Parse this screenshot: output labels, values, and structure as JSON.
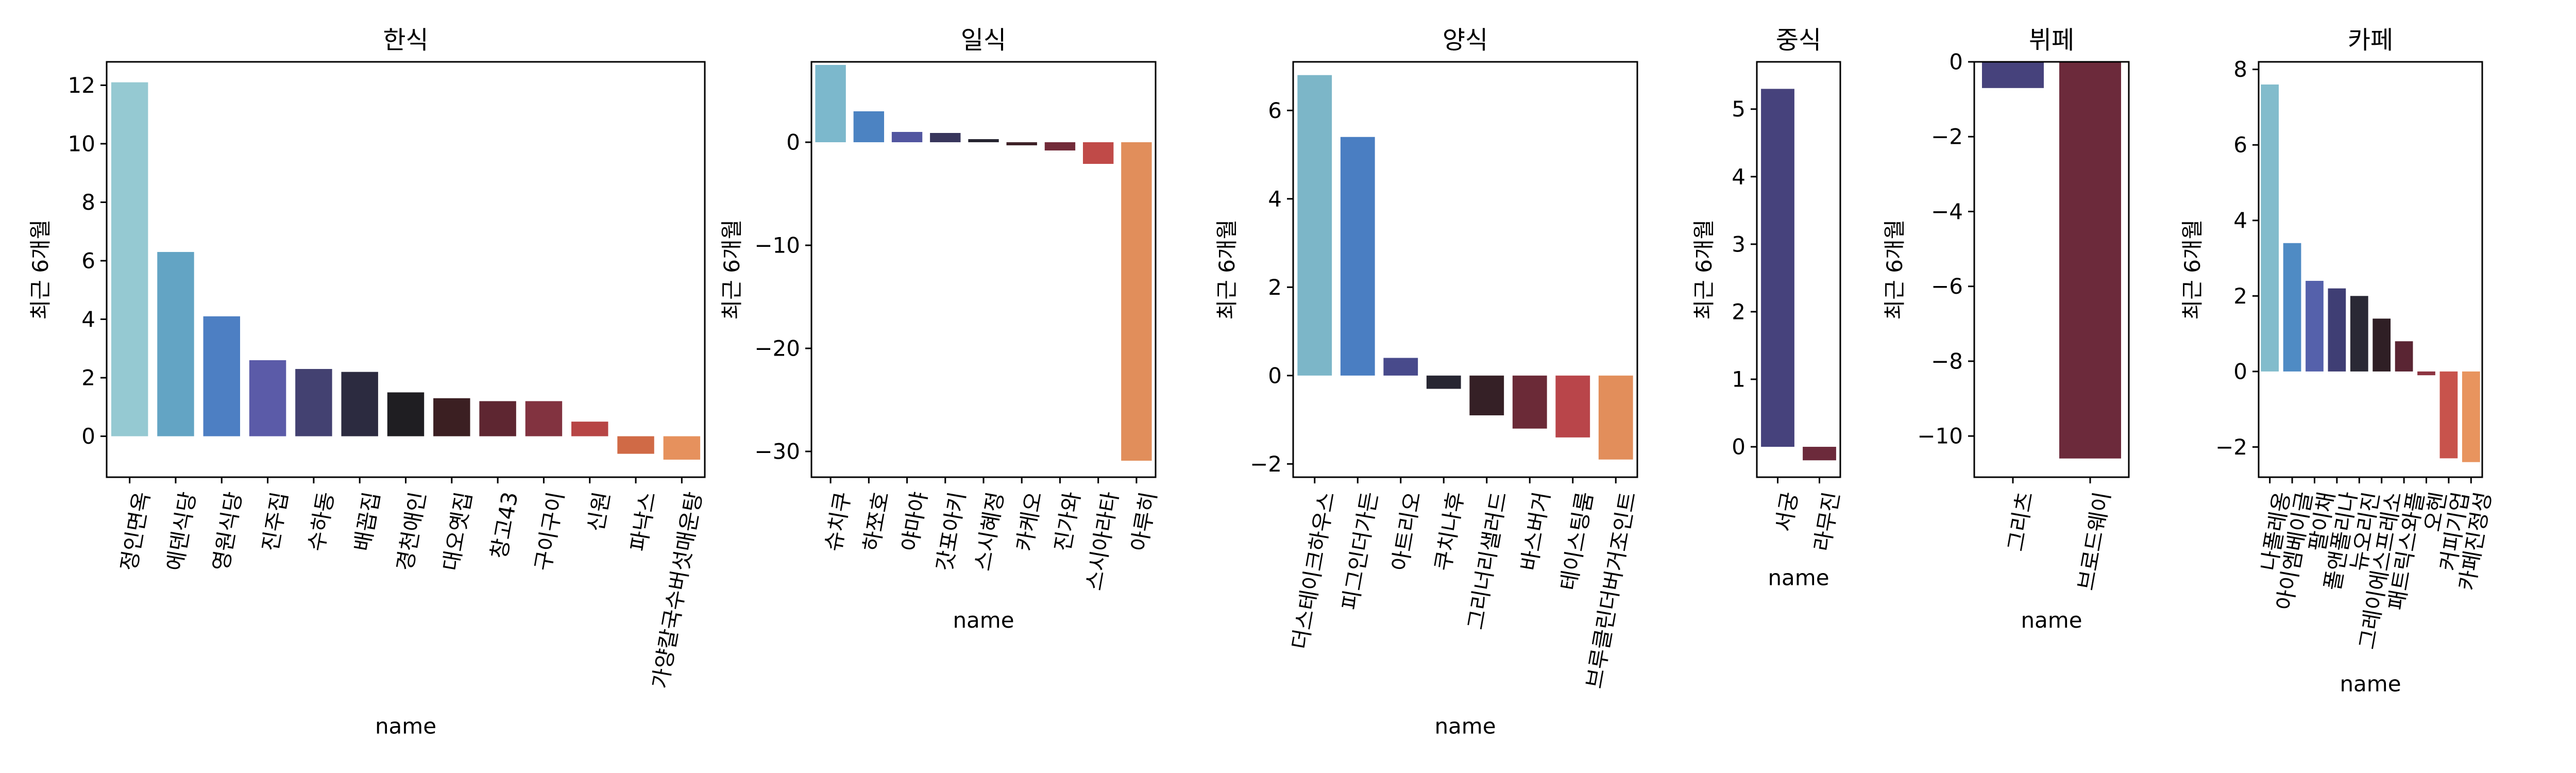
{
  "chart_data": [
    {
      "type": "bar",
      "title": "한식",
      "xlabel": "name",
      "ylabel": "최근 6개월",
      "ylim": [
        -1.4,
        12.8
      ],
      "yticks": [
        0,
        2,
        4,
        6,
        8,
        10,
        12
      ],
      "categories": [
        "정인면옥",
        "에덴식당",
        "영원식당",
        "진주집",
        "수하동",
        "배꼽집",
        "경천애인",
        "대오옛집",
        "창고43",
        "구이구이",
        "신원",
        "파낙스",
        "가양칼국수버섯매운탕"
      ],
      "values": [
        12.1,
        6.3,
        4.1,
        2.6,
        2.3,
        2.2,
        1.5,
        1.3,
        1.2,
        1.2,
        0.5,
        -0.6,
        -0.8
      ],
      "colors": [
        "#95c9d2",
        "#63a4c4",
        "#4d7fc3",
        "#5b5ba8",
        "#434171",
        "#2c2b40",
        "#1f1e22",
        "#3b1f22",
        "#5e2631",
        "#823340",
        "#b74545",
        "#d06a46",
        "#e6915d"
      ]
    },
    {
      "type": "bar",
      "title": "일식",
      "xlabel": "name",
      "ylabel": "최근 6개월",
      "ylim": [
        -32.5,
        7.8
      ],
      "yticks": [
        -30,
        -20,
        -10,
        0
      ],
      "yticklabels": [
        "−30",
        "−20",
        "−10",
        "0"
      ],
      "categories": [
        "슈치쿠",
        "하쪼호",
        "야마야",
        "갓포아키",
        "스시혜정",
        "카케오",
        "진가와",
        "스시아라타",
        "아루히"
      ],
      "values": [
        7.5,
        3.0,
        1.0,
        0.9,
        0.3,
        -0.3,
        -0.8,
        -2.1,
        -30.9
      ],
      "colors": [
        "#7cb8cc",
        "#4c83c2",
        "#5256a0",
        "#38365c",
        "#262530",
        "#3e2127",
        "#722b39",
        "#c04a48",
        "#e18e5b"
      ]
    },
    {
      "type": "bar",
      "title": "양식",
      "xlabel": "name",
      "ylabel": "최근 6개월",
      "ylim": [
        -2.3,
        7.1
      ],
      "yticks": [
        -2,
        0,
        2,
        4,
        6
      ],
      "yticklabels": [
        "−2",
        "0",
        "2",
        "4",
        "6"
      ],
      "categories": [
        "더스테이크하우스",
        "피그인더가든",
        "아트리오",
        "쿠치나후",
        "그리너리샐러드",
        "바스버거",
        "테이스팅룸",
        "브루클린더버거조인트"
      ],
      "values": [
        6.8,
        5.4,
        0.4,
        -0.3,
        -0.9,
        -1.2,
        -1.4,
        -1.9
      ],
      "colors": [
        "#7cb6c8",
        "#4a7ec2",
        "#484a8b",
        "#272632",
        "#352026",
        "#6b2a37",
        "#b9454a",
        "#e28e5b"
      ]
    },
    {
      "type": "bar",
      "title": "중식",
      "xlabel": "name",
      "ylabel": "최근 6개월",
      "ylim": [
        -0.45,
        5.7
      ],
      "yticks": [
        0,
        1,
        2,
        3,
        4,
        5
      ],
      "categories": [
        "서궁",
        "라무진"
      ],
      "values": [
        5.3,
        -0.2
      ],
      "colors": [
        "#46427c",
        "#6c2a3b"
      ]
    },
    {
      "type": "bar",
      "title": "뷔페",
      "xlabel": "name",
      "ylabel": "최근 6개월",
      "ylim": [
        -11.1,
        0.0
      ],
      "yticks": [
        -10,
        -8,
        -6,
        -4,
        -2,
        0
      ],
      "yticklabels": [
        "−10",
        "−8",
        "−6",
        "−4",
        "−2",
        "0"
      ],
      "categories": [
        "그리츠",
        "브로드웨이"
      ],
      "values": [
        -0.7,
        -10.6
      ],
      "colors": [
        "#46427c",
        "#6c2a3b"
      ]
    },
    {
      "type": "bar",
      "title": "카페",
      "xlabel": "name",
      "ylabel": "최근 6개월",
      "ylim": [
        -2.8,
        8.2
      ],
      "yticks": [
        -2,
        0,
        2,
        4,
        6,
        8
      ],
      "yticklabels": [
        "−2",
        "0",
        "2",
        "4",
        "6",
        "8"
      ],
      "categories": [
        "나폴레옹",
        "아이엠베이글",
        "팔이채",
        "폴앤폴리나",
        "뉴오리진",
        "그레이에스프레소",
        "패트릭스와플",
        "오헨",
        "커피기업",
        "카페진정성"
      ],
      "values": [
        7.6,
        3.4,
        2.4,
        2.2,
        2.0,
        1.4,
        0.8,
        -0.1,
        -2.3,
        -2.4
      ],
      "colors": [
        "#82bccc",
        "#4f8bc4",
        "#5561ab",
        "#3f3e74",
        "#2a2935",
        "#2f1f25",
        "#5a2533",
        "#8d3441",
        "#c8534c",
        "#e8945e"
      ]
    }
  ]
}
